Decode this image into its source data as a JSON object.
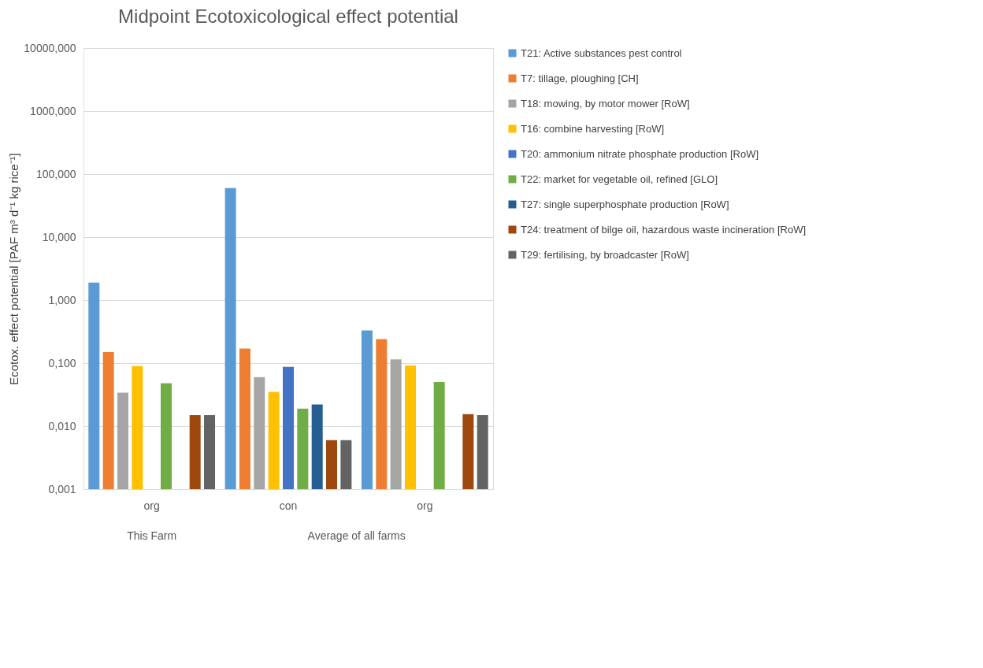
{
  "chart_data": {
    "type": "bar",
    "title": "Midpoint Ecotoxicological effect potential",
    "ylabel": "Ecotox. effect potential [PAF m³ d⁻¹ kg rice⁻¹]",
    "categories": [
      "org",
      "con",
      "org"
    ],
    "annotations": [
      "This Farm",
      "Average of all farms"
    ],
    "series": [
      {
        "name": "T21: Active substances pest control",
        "color": "#5b9bd5",
        "values": [
          1.9,
          60,
          0.33
        ]
      },
      {
        "name": "T7: tillage, ploughing [CH]",
        "color": "#ed7d31",
        "values": [
          0.15,
          0.17,
          0.24
        ]
      },
      {
        "name": "T18: mowing, by motor mower [RoW]",
        "color": "#a5a5a5",
        "values": [
          0.034,
          0.06,
          0.115
        ]
      },
      {
        "name": "T16: combine harvesting [RoW]",
        "color": "#ffc000",
        "values": [
          0.09,
          0.035,
          0.092
        ]
      },
      {
        "name": "T20: ammonium nitrate phosphate production [RoW]",
        "color": "#4472c4",
        "values": [
          null,
          0.087,
          null
        ]
      },
      {
        "name": "T22: market for vegetable oil, refined [GLO]",
        "color": "#70ad47",
        "values": [
          0.048,
          0.019,
          0.05
        ]
      },
      {
        "name": "T27: single superphosphate production [RoW]",
        "color": "#255e91",
        "values": [
          null,
          0.022,
          null
        ]
      },
      {
        "name": "T24: treatment of bilge oil, hazardous waste incineration [RoW]",
        "color": "#9e480e",
        "values": [
          0.015,
          0.006,
          0.0155
        ]
      },
      {
        "name": "T29: fertilising, by broadcaster [RoW]",
        "color": "#636363",
        "values": [
          0.015,
          0.006,
          0.015
        ]
      }
    ],
    "log": true,
    "ylim": [
      0.001,
      10000
    ],
    "yticks": [
      {
        "value": 0.001,
        "label": "0,001"
      },
      {
        "value": 0.01,
        "label": "0,010"
      },
      {
        "value": 0.1,
        "label": "0,100"
      },
      {
        "value": 1,
        "label": "1,000"
      },
      {
        "value": 10,
        "label": "10,000"
      },
      {
        "value": 100,
        "label": "100,000"
      },
      {
        "value": 1000,
        "label": "1000,000"
      },
      {
        "value": 10000,
        "label": "10000,000"
      }
    ],
    "grid": "y",
    "legend": "right"
  }
}
